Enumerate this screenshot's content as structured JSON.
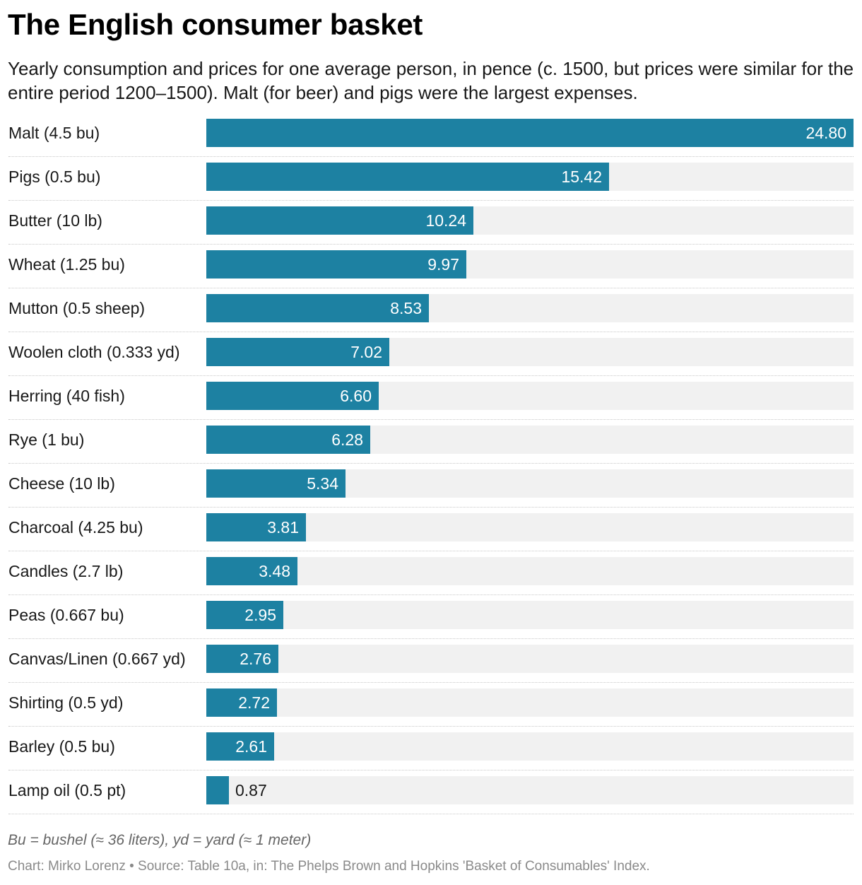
{
  "header": {
    "title": "The English consumer basket",
    "subtitle": "Yearly consumption and prices for one average person, in pence (c. 1500, but prices were similar for the entire period 1200–1500). Malt (for beer) and pigs were the largest expenses."
  },
  "footer": {
    "note": "Bu = bushel (≈ 36 liters), yd = yard (≈ 1 meter)",
    "source": "Chart: Mirko Lorenz • Source: Table 10a, in: The Phelps Brown and Hopkins 'Basket of Consumables' Index."
  },
  "colors": {
    "bar": "#1d81a2",
    "track": "#f1f1f1"
  },
  "chart_data": {
    "type": "bar",
    "orientation": "horizontal",
    "title": "The English consumer basket",
    "xlabel": "",
    "ylabel": "",
    "xlim": [
      0,
      24.8
    ],
    "value_format": "0.00",
    "categories": [
      "Malt (4.5 bu)",
      "Pigs (0.5 bu)",
      "Butter (10 lb)",
      "Wheat (1.25 bu)",
      "Mutton (0.5 sheep)",
      "Woolen cloth (0.333 yd)",
      "Herring (40 fish)",
      "Rye (1 bu)",
      "Cheese (10 lb)",
      "Charcoal (4.25 bu)",
      "Candles (2.7 lb)",
      "Peas (0.667 bu)",
      "Canvas/Linen (0.667 yd)",
      "Shirting (0.5 yd)",
      "Barley (0.5 bu)",
      "Lamp oil (0.5 pt)"
    ],
    "values": [
      24.8,
      15.42,
      10.24,
      9.97,
      8.53,
      7.02,
      6.6,
      6.28,
      5.34,
      3.81,
      3.48,
      2.95,
      2.76,
      2.72,
      2.61,
      0.87
    ],
    "labels": [
      "24.80",
      "15.42",
      "10.24",
      "9.97",
      "8.53",
      "7.02",
      "6.60",
      "6.28",
      "5.34",
      "3.81",
      "3.48",
      "2.95",
      "2.76",
      "2.72",
      "2.61",
      "0.87"
    ]
  }
}
